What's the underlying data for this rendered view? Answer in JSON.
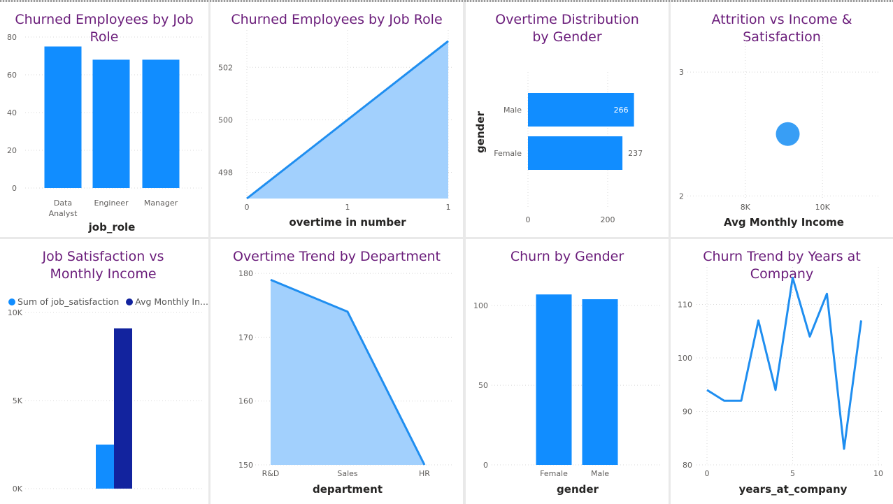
{
  "colors": {
    "bar": "#118dff",
    "bar_dark": "#12239e",
    "area_fill": "#a2d0fd",
    "line": "#1f8ef0",
    "title": "#6a1c7a"
  },
  "chart_data": [
    {
      "id": "c1",
      "type": "bar",
      "title": "Churned Employees by Job Role",
      "xlabel": "job_role",
      "ylabel": "",
      "categories": [
        [
          "Data",
          "Analyst"
        ],
        [
          "Engineer"
        ],
        [
          "Manager"
        ]
      ],
      "values": [
        75,
        68,
        68
      ],
      "ylim": [
        0,
        80
      ],
      "yticks": [
        "0",
        "20",
        "40",
        "60",
        "80"
      ],
      "ytick_values": [
        0,
        20,
        40,
        60,
        80
      ],
      "grid": true
    },
    {
      "id": "c2",
      "type": "area",
      "title": "Churned Employees by Job Role",
      "xlabel": "overtime in number",
      "ylabel": "",
      "x": [
        0,
        1
      ],
      "y": [
        497,
        503
      ],
      "xticks": [
        "0",
        "1",
        "1"
      ],
      "xtick_values": [
        0,
        0.5,
        1
      ],
      "yticks": [
        "498",
        "500",
        "502"
      ],
      "ytick_values": [
        498,
        500,
        502
      ],
      "ylim": [
        497,
        503.5
      ],
      "grid": true
    },
    {
      "id": "c3",
      "type": "bar",
      "orientation": "horizontal",
      "title": "Overtime Distribution by Gender",
      "xlabel": "",
      "ylabel": "gender",
      "categories": [
        "Male",
        "Female"
      ],
      "values": [
        266,
        237
      ],
      "data_labels": [
        "266",
        "237"
      ],
      "xlim": [
        0,
        300
      ],
      "xticks": [
        "0",
        "200"
      ],
      "xtick_values": [
        0,
        200
      ],
      "grid": true
    },
    {
      "id": "c4",
      "type": "scatter",
      "title": "Attrition vs Income & Satisfaction",
      "xlabel": "Avg Monthly Income",
      "ylabel": "",
      "points": [
        {
          "x": 9100,
          "y": 2.5
        }
      ],
      "xlim": [
        6500,
        11500
      ],
      "xticks": [
        "8K",
        "10K"
      ],
      "xtick_values": [
        8000,
        10000
      ],
      "ylim": [
        1.9,
        3.3
      ],
      "yticks": [
        "2",
        "3"
      ],
      "ytick_values": [
        2,
        3
      ],
      "grid": true
    },
    {
      "id": "c5",
      "type": "bar",
      "title": "Job Satisfaction vs Monthly Income",
      "xlabel": "",
      "ylabel": "",
      "categories": [
        ""
      ],
      "series": [
        {
          "name": "Sum of job_satisfaction",
          "values": [
            2500
          ],
          "color": "#118dff"
        },
        {
          "name": "Avg Monthly In...",
          "values": [
            9100
          ],
          "color": "#12239e"
        }
      ],
      "ylim": [
        0,
        10000
      ],
      "yticks": [
        "0K",
        "5K",
        "10K"
      ],
      "ytick_values": [
        0,
        5000,
        10000
      ],
      "legend": "top-left",
      "grid": true
    },
    {
      "id": "c6",
      "type": "area",
      "title": "Overtime Trend by Department",
      "xlabel": "department",
      "ylabel": "",
      "categories": [
        "R&D",
        "Sales",
        "HR"
      ],
      "values": [
        179,
        174,
        150
      ],
      "ylim": [
        150,
        181
      ],
      "yticks": [
        "150",
        "160",
        "170",
        "180"
      ],
      "ytick_values": [
        150,
        160,
        170,
        180
      ],
      "grid": true
    },
    {
      "id": "c7",
      "type": "bar",
      "title": "Churn by Gender",
      "xlabel": "gender",
      "ylabel": "",
      "categories": [
        "Female",
        "Male"
      ],
      "values": [
        107,
        104
      ],
      "ylim": [
        0,
        115
      ],
      "yticks": [
        "0",
        "50",
        "100"
      ],
      "ytick_values": [
        0,
        50,
        100
      ],
      "grid": true
    },
    {
      "id": "c8",
      "type": "line",
      "title": "Churn Trend by Years at Company",
      "xlabel": "years_at_company",
      "ylabel": "",
      "x": [
        0,
        1,
        2,
        3,
        4,
        5,
        6,
        7,
        8,
        9
      ],
      "y": [
        94,
        92,
        92,
        107,
        94,
        115,
        104,
        112,
        83,
        107
      ],
      "xlim": [
        0,
        10
      ],
      "xticks": [
        "0",
        "5",
        "10"
      ],
      "xtick_values": [
        0,
        5,
        10
      ],
      "ylim": [
        80,
        117
      ],
      "yticks": [
        "80",
        "90",
        "100",
        "110"
      ],
      "ytick_values": [
        80,
        90,
        100,
        110
      ],
      "grid": true
    }
  ]
}
